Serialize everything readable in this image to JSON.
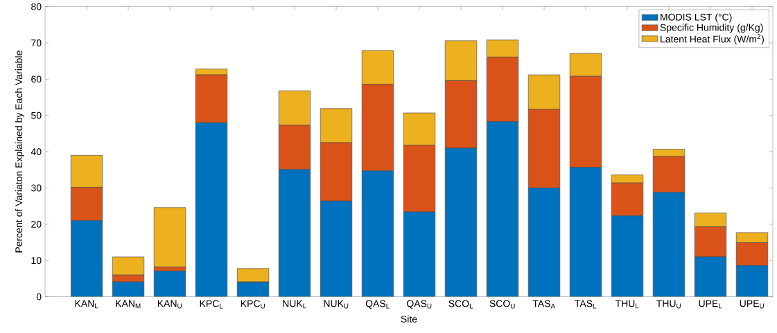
{
  "chart_data": {
    "type": "bar",
    "stacked": true,
    "xlabel": "Site",
    "ylabel": "Percent of Variaton Explained by Each Variable",
    "categories": [
      "KAN$_{L}$",
      "KAN$_{M}$",
      "KAN$_{U}$",
      "KPC$_{L}$",
      "KPC$_{U}$",
      "NUK$_{L}$",
      "NUK$_{U}$",
      "QAS$_{L}$",
      "QAS$_{U}$",
      "SCO$_{L}$",
      "SCO$_{U}$",
      "TAS$_{A}$",
      "TAS$_{L}$",
      "THU$_{L}$",
      "THU$_{U}$",
      "UPE$_{L}$",
      "UPE$_{U}$"
    ],
    "series": [
      {
        "name": "MODIS LST (°C)",
        "color": "#0072bd",
        "values": [
          21,
          4.1,
          7.1,
          48,
          4.0,
          35.1,
          26.4,
          34.7,
          23.4,
          41,
          48.3,
          30,
          35.7,
          22.3,
          28.8,
          11,
          8.6
        ]
      },
      {
        "name": "Specific Humidity (g/Kg)",
        "color": "#d95319",
        "values": [
          9.2,
          1.9,
          1.1,
          13.2,
          0.1,
          12.2,
          16.1,
          23.9,
          18.4,
          18.6,
          17.8,
          21.7,
          25.1,
          9.1,
          9.9,
          8.3,
          6.3
        ]
      },
      {
        "name": "Latent Heat Flux (W/m$^{2}$)",
        "color": "#edb120",
        "values": [
          8.8,
          5.0,
          16.4,
          1.6,
          3.7,
          9.5,
          9.4,
          9.3,
          8.9,
          11,
          4.7,
          9.5,
          6.3,
          2.2,
          2.0,
          3.8,
          2.8
        ]
      }
    ],
    "ylim": [
      0,
      80
    ],
    "yticks": [
      0,
      10,
      20,
      30,
      40,
      50,
      60,
      70,
      80
    ],
    "grid": false,
    "legend": "top right"
  }
}
